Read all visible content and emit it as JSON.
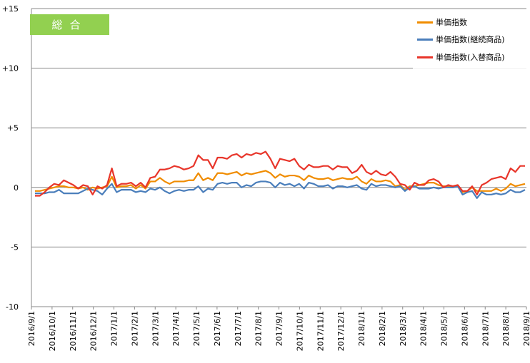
{
  "badge_label": "総合",
  "colors": {
    "unit_price": "#f08c00",
    "continuing": "#4a7ebb",
    "replacement": "#e8352a",
    "badge": "#92d050"
  },
  "chart_data": {
    "type": "line",
    "title": "総合",
    "xlabel": "",
    "ylabel": "",
    "ylim": [
      -10,
      15
    ],
    "yticks": [
      {
        "v": 15,
        "label": "+15"
      },
      {
        "v": 10,
        "label": "+10"
      },
      {
        "v": 5,
        "label": "+5"
      },
      {
        "v": 0,
        "label": "0"
      },
      {
        "v": -5,
        "label": "-5"
      },
      {
        "v": -10,
        "label": "-10"
      }
    ],
    "grid": "horizontal",
    "legend_position": "top-right",
    "x_labels": [
      "2016/9/1",
      "2016/10/1",
      "2016/11/1",
      "2016/12/1",
      "2017/1/1",
      "2017/2/1",
      "2017/3/1",
      "2017/4/1",
      "2017/5/1",
      "2017/6/1",
      "2017/7/1",
      "2017/8/1",
      "2017/9/1",
      "2017/10/1",
      "2017/11/1",
      "2017/12/1",
      "2018/1/1",
      "2018/2/1",
      "2018/3/1",
      "2018/4/1",
      "2018/5/1",
      "2018/6/1",
      "2018/7/1",
      "2018/8/1",
      "2018/9/1"
    ],
    "series": [
      {
        "name": "単価指数",
        "color": "#f08c00",
        "values": [
          -0.3,
          -0.3,
          -0.2,
          -0.1,
          0.0,
          0.1,
          0.1,
          0.0,
          0.0,
          -0.1,
          0.0,
          -0.2,
          0.0,
          -0.1,
          0.0,
          0.1,
          0.9,
          0.0,
          0.1,
          0.1,
          0.2,
          -0.1,
          0.2,
          -0.1,
          0.5,
          0.5,
          0.8,
          0.5,
          0.3,
          0.5,
          0.5,
          0.5,
          0.6,
          0.6,
          1.2,
          0.6,
          0.8,
          0.6,
          1.2,
          1.2,
          1.1,
          1.2,
          1.3,
          1.0,
          1.2,
          1.1,
          1.2,
          1.3,
          1.4,
          1.2,
          0.8,
          1.1,
          0.9,
          1.0,
          1.0,
          0.9,
          0.6,
          1.0,
          0.8,
          0.7,
          0.7,
          0.8,
          0.6,
          0.7,
          0.8,
          0.7,
          0.7,
          0.9,
          0.5,
          0.3,
          0.7,
          0.5,
          0.5,
          0.6,
          0.5,
          0.1,
          0.2,
          -0.2,
          0.1,
          0.1,
          0.2,
          0.3,
          0.4,
          0.4,
          0.2,
          0.1,
          0.1,
          0.1,
          0.2,
          -0.4,
          -0.3,
          0.0,
          -0.3,
          -0.3,
          -0.3,
          -0.3,
          -0.1,
          -0.3,
          -0.1,
          0.3,
          0.1,
          0.2,
          0.3
        ]
      },
      {
        "name": "単価指数(継続商品)",
        "color": "#4a7ebb",
        "values": [
          -0.5,
          -0.5,
          -0.5,
          -0.4,
          -0.4,
          -0.2,
          -0.5,
          -0.5,
          -0.5,
          -0.5,
          -0.3,
          -0.1,
          -0.2,
          -0.3,
          -0.6,
          -0.1,
          0.3,
          -0.4,
          -0.2,
          -0.2,
          -0.2,
          -0.4,
          -0.3,
          -0.4,
          -0.1,
          -0.2,
          0.0,
          -0.3,
          -0.5,
          -0.3,
          -0.2,
          -0.3,
          -0.2,
          -0.2,
          0.1,
          -0.4,
          -0.1,
          -0.2,
          0.3,
          0.4,
          0.3,
          0.4,
          0.4,
          0.0,
          0.2,
          0.1,
          0.4,
          0.5,
          0.5,
          0.4,
          0.0,
          0.4,
          0.2,
          0.3,
          0.1,
          0.3,
          -0.1,
          0.4,
          0.3,
          0.1,
          0.1,
          0.2,
          -0.1,
          0.1,
          0.1,
          0.0,
          0.1,
          0.2,
          -0.1,
          -0.2,
          0.3,
          0.1,
          0.2,
          0.2,
          0.1,
          0.0,
          0.1,
          -0.3,
          0.0,
          0.1,
          -0.1,
          -0.1,
          -0.1,
          0.0,
          -0.1,
          0.0,
          0.0,
          0.0,
          0.1,
          -0.6,
          -0.4,
          -0.3,
          -0.9,
          -0.4,
          -0.6,
          -0.6,
          -0.5,
          -0.6,
          -0.5,
          -0.2,
          -0.4,
          -0.4,
          -0.2
        ]
      },
      {
        "name": "単価指数(入替商品)",
        "color": "#e8352a",
        "values": [
          -0.7,
          -0.7,
          -0.4,
          0.0,
          0.3,
          0.2,
          0.6,
          0.4,
          0.2,
          -0.1,
          0.2,
          0.1,
          -0.6,
          0.1,
          -0.1,
          0.2,
          1.6,
          0.1,
          0.3,
          0.3,
          0.4,
          0.1,
          0.4,
          0.0,
          0.8,
          0.9,
          1.5,
          1.5,
          1.6,
          1.8,
          1.7,
          1.5,
          1.6,
          1.8,
          2.7,
          2.3,
          2.3,
          1.6,
          2.5,
          2.5,
          2.4,
          2.7,
          2.8,
          2.5,
          2.8,
          2.7,
          2.9,
          2.8,
          3.0,
          2.4,
          1.6,
          2.4,
          2.3,
          2.2,
          2.4,
          1.8,
          1.5,
          1.9,
          1.7,
          1.7,
          1.8,
          1.8,
          1.5,
          1.8,
          1.7,
          1.7,
          1.2,
          1.4,
          1.9,
          1.3,
          1.1,
          1.4,
          1.1,
          1.0,
          1.3,
          0.9,
          0.3,
          0.2,
          -0.2,
          0.4,
          0.2,
          0.2,
          0.6,
          0.7,
          0.5,
          0.0,
          0.2,
          0.1,
          0.2,
          -0.3,
          -0.3,
          0.1,
          -0.6,
          0.2,
          0.4,
          0.7,
          0.8,
          0.9,
          0.7,
          1.6,
          1.3,
          1.8,
          1.8
        ]
      }
    ]
  }
}
